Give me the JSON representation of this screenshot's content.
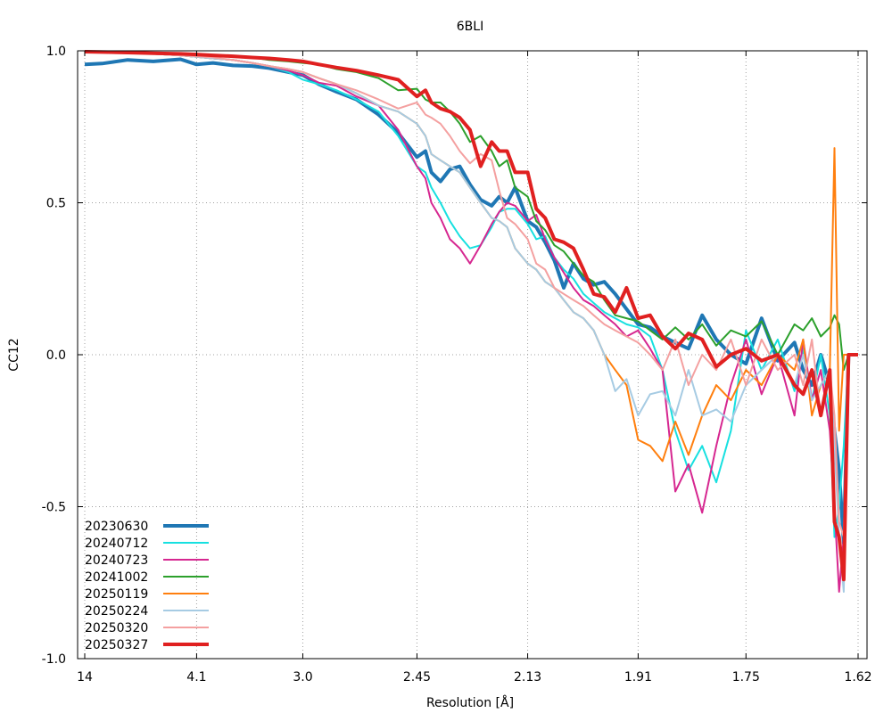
{
  "chart_data": {
    "type": "line",
    "title": "6BLI",
    "xlabel": "Resolution [Å]",
    "ylabel": "CC12",
    "x_axis_scale": "1/d^2",
    "xlim": [
      14,
      1.62
    ],
    "ylim": [
      -1.0,
      1.0
    ],
    "x_ticks": [
      {
        "value": 14,
        "label": "14"
      },
      {
        "value": 4.1,
        "label": "4.1"
      },
      {
        "value": 3.0,
        "label": "3.0"
      },
      {
        "value": 2.45,
        "label": "2.45"
      },
      {
        "value": 2.13,
        "label": "2.13"
      },
      {
        "value": 1.91,
        "label": "1.91"
      },
      {
        "value": 1.75,
        "label": "1.75"
      },
      {
        "value": 1.62,
        "label": "1.62"
      }
    ],
    "y_ticks": [
      {
        "value": 1.0,
        "label": "1.0"
      },
      {
        "value": 0.5,
        "label": "0.5"
      },
      {
        "value": 0.0,
        "label": "0.0"
      },
      {
        "value": -0.5,
        "label": "-0.5"
      },
      {
        "value": -1.0,
        "label": "-1.0"
      }
    ],
    "grid": true,
    "legend_position": "bottom-left",
    "series": [
      {
        "name": "20230630",
        "color": "#1f77b4",
        "width": 4,
        "resolution": [
          14,
          8.6,
          6.2,
          5.1,
          4.4,
          4.1,
          3.85,
          3.6,
          3.4,
          3.25,
          3.1,
          3.0,
          2.9,
          2.8,
          2.7,
          2.6,
          2.52,
          2.45,
          2.42,
          2.4,
          2.37,
          2.34,
          2.31,
          2.28,
          2.25,
          2.22,
          2.2,
          2.18,
          2.16,
          2.13,
          2.11,
          2.09,
          2.07,
          2.05,
          2.03,
          2.01,
          1.99,
          1.97,
          1.95,
          1.93,
          1.91,
          1.89,
          1.87,
          1.85,
          1.83,
          1.81,
          1.79,
          1.77,
          1.75,
          1.73,
          1.71,
          1.69,
          1.68,
          1.67,
          1.66,
          1.65,
          1.645,
          1.64,
          1.635,
          1.63,
          1.62
        ],
        "cc": [
          0.955,
          0.958,
          0.97,
          0.965,
          0.972,
          0.955,
          0.96,
          0.952,
          0.95,
          0.943,
          0.93,
          0.92,
          0.89,
          0.865,
          0.84,
          0.79,
          0.73,
          0.65,
          0.67,
          0.6,
          0.57,
          0.61,
          0.62,
          0.56,
          0.51,
          0.49,
          0.52,
          0.5,
          0.55,
          0.44,
          0.42,
          0.37,
          0.31,
          0.22,
          0.3,
          0.25,
          0.23,
          0.24,
          0.2,
          0.15,
          0.1,
          0.09,
          0.06,
          0.04,
          0.02,
          0.13,
          0.05,
          0.0,
          -0.03,
          0.12,
          -0.02,
          0.04,
          -0.05,
          -0.1,
          0.0,
          -0.1,
          -0.25,
          -0.38,
          -0.62,
          0.0,
          0.0
        ]
      },
      {
        "name": "20240712",
        "color": "#17e0e0",
        "width": 2,
        "resolution": [
          14,
          8.6,
          6.2,
          5.1,
          4.4,
          4.1,
          3.85,
          3.6,
          3.4,
          3.25,
          3.1,
          3.0,
          2.9,
          2.8,
          2.7,
          2.6,
          2.52,
          2.45,
          2.42,
          2.4,
          2.37,
          2.34,
          2.31,
          2.28,
          2.25,
          2.22,
          2.2,
          2.18,
          2.16,
          2.13,
          2.11,
          2.09,
          2.07,
          2.05,
          2.03,
          2.01,
          1.99,
          1.97,
          1.95,
          1.93,
          1.91,
          1.89,
          1.87,
          1.85,
          1.83,
          1.81,
          1.79,
          1.77,
          1.75,
          1.73,
          1.71,
          1.69,
          1.68,
          1.67,
          1.66,
          1.65,
          1.645,
          1.64,
          1.635,
          1.63,
          1.62
        ],
        "cc": [
          0.997,
          0.996,
          0.993,
          0.99,
          0.985,
          0.98,
          0.975,
          0.97,
          0.96,
          0.95,
          0.93,
          0.905,
          0.89,
          0.87,
          0.84,
          0.8,
          0.72,
          0.62,
          0.6,
          0.55,
          0.5,
          0.44,
          0.39,
          0.35,
          0.36,
          0.42,
          0.47,
          0.48,
          0.48,
          0.43,
          0.38,
          0.39,
          0.32,
          0.28,
          0.25,
          0.2,
          0.17,
          0.14,
          0.12,
          0.1,
          0.09,
          0.06,
          -0.05,
          -0.25,
          -0.38,
          -0.3,
          -0.42,
          -0.25,
          0.08,
          -0.05,
          0.05,
          -0.12,
          0.02,
          -0.15,
          0.0,
          -0.2,
          -0.6,
          -0.5,
          -0.3,
          0.0,
          0.0
        ]
      },
      {
        "name": "20240723",
        "color": "#d62790",
        "width": 2,
        "resolution": [
          14,
          8.6,
          6.2,
          5.1,
          4.4,
          4.1,
          3.85,
          3.6,
          3.4,
          3.25,
          3.1,
          3.0,
          2.9,
          2.8,
          2.7,
          2.6,
          2.52,
          2.45,
          2.42,
          2.4,
          2.37,
          2.34,
          2.31,
          2.28,
          2.25,
          2.22,
          2.2,
          2.18,
          2.16,
          2.13,
          2.11,
          2.09,
          2.07,
          2.05,
          2.03,
          2.01,
          1.99,
          1.97,
          1.95,
          1.93,
          1.91,
          1.89,
          1.87,
          1.85,
          1.83,
          1.81,
          1.79,
          1.77,
          1.75,
          1.73,
          1.71,
          1.69,
          1.68,
          1.67,
          1.66,
          1.65,
          1.645,
          1.64,
          1.635,
          1.63,
          1.62
        ],
        "cc": [
          0.997,
          0.996,
          0.993,
          0.99,
          0.985,
          0.98,
          0.975,
          0.97,
          0.96,
          0.95,
          0.935,
          0.92,
          0.895,
          0.885,
          0.85,
          0.82,
          0.74,
          0.62,
          0.58,
          0.5,
          0.45,
          0.38,
          0.35,
          0.3,
          0.36,
          0.43,
          0.47,
          0.5,
          0.49,
          0.44,
          0.46,
          0.38,
          0.32,
          0.27,
          0.22,
          0.18,
          0.16,
          0.13,
          0.1,
          0.06,
          0.08,
          0.02,
          -0.05,
          -0.45,
          -0.36,
          -0.52,
          -0.3,
          -0.1,
          0.05,
          -0.13,
          0.0,
          -0.2,
          0.05,
          -0.15,
          -0.05,
          -0.25,
          -0.5,
          -0.78,
          -0.6,
          0.0,
          0.0
        ]
      },
      {
        "name": "20241002",
        "color": "#2ca02c",
        "width": 2,
        "resolution": [
          14,
          8.6,
          6.2,
          5.1,
          4.4,
          4.1,
          3.85,
          3.6,
          3.4,
          3.25,
          3.1,
          3.0,
          2.9,
          2.8,
          2.7,
          2.6,
          2.52,
          2.45,
          2.42,
          2.4,
          2.37,
          2.34,
          2.31,
          2.28,
          2.25,
          2.22,
          2.2,
          2.18,
          2.16,
          2.13,
          2.11,
          2.09,
          2.07,
          2.05,
          2.03,
          2.01,
          1.99,
          1.97,
          1.95,
          1.93,
          1.91,
          1.89,
          1.87,
          1.85,
          1.83,
          1.81,
          1.79,
          1.77,
          1.75,
          1.73,
          1.71,
          1.69,
          1.68,
          1.67,
          1.66,
          1.65,
          1.645,
          1.64,
          1.635,
          1.63,
          1.62
        ],
        "cc": [
          0.997,
          0.996,
          0.995,
          0.993,
          0.99,
          0.99,
          0.985,
          0.982,
          0.978,
          0.97,
          0.965,
          0.96,
          0.955,
          0.94,
          0.93,
          0.91,
          0.87,
          0.875,
          0.84,
          0.83,
          0.83,
          0.8,
          0.76,
          0.7,
          0.72,
          0.67,
          0.62,
          0.64,
          0.55,
          0.52,
          0.44,
          0.41,
          0.36,
          0.34,
          0.3,
          0.26,
          0.24,
          0.18,
          0.13,
          0.12,
          0.11,
          0.08,
          0.05,
          0.09,
          0.05,
          0.1,
          0.03,
          0.08,
          0.06,
          0.11,
          0.0,
          0.1,
          0.08,
          0.12,
          0.06,
          0.09,
          0.13,
          0.1,
          -0.05,
          0.0,
          0.0
        ]
      },
      {
        "name": "20250119",
        "color": "#ff7f0e",
        "width": 2,
        "resolution": [
          14,
          8.6,
          6.2,
          5.1,
          4.4,
          4.1,
          3.85,
          3.6,
          3.4,
          3.25,
          3.1,
          3.0,
          2.9,
          2.8,
          2.7,
          2.6,
          2.52,
          2.45,
          2.42,
          2.4,
          2.37,
          2.34,
          2.31,
          2.28,
          2.25,
          2.22,
          2.2,
          2.18,
          2.16,
          2.13,
          2.11,
          2.09,
          2.07,
          2.05,
          2.03,
          2.01,
          1.99,
          1.97,
          1.95,
          1.93,
          1.91,
          1.89,
          1.87,
          1.85,
          1.83,
          1.81,
          1.79,
          1.77,
          1.75,
          1.73,
          1.71,
          1.69,
          1.68,
          1.67,
          1.66,
          1.65,
          1.645,
          1.64,
          1.635,
          1.63,
          1.62
        ],
        "cc": [
          0.997,
          0.996,
          0.993,
          0.99,
          0.985,
          0.98,
          0.975,
          0.97,
          0.96,
          0.95,
          0.94,
          0.93,
          0.91,
          0.89,
          0.86,
          0.82,
          0.8,
          0.76,
          0.72,
          0.66,
          0.64,
          0.62,
          0.6,
          0.55,
          0.5,
          0.45,
          0.44,
          0.42,
          0.35,
          0.3,
          0.28,
          0.24,
          0.22,
          0.18,
          0.14,
          0.12,
          0.08,
          0.0,
          -0.05,
          -0.1,
          -0.28,
          -0.3,
          -0.35,
          -0.22,
          -0.33,
          -0.2,
          -0.1,
          -0.15,
          -0.05,
          -0.1,
          0.0,
          -0.05,
          0.05,
          -0.2,
          -0.1,
          -0.05,
          0.68,
          -0.25,
          0.0,
          0.0,
          0.0
        ]
      },
      {
        "name": "20250224",
        "color": "#a6cbe3",
        "width": 2,
        "resolution": [
          14,
          8.6,
          6.2,
          5.1,
          4.4,
          4.1,
          3.85,
          3.6,
          3.4,
          3.25,
          3.1,
          3.0,
          2.9,
          2.8,
          2.7,
          2.6,
          2.52,
          2.45,
          2.42,
          2.4,
          2.37,
          2.34,
          2.31,
          2.28,
          2.25,
          2.22,
          2.2,
          2.18,
          2.16,
          2.13,
          2.11,
          2.09,
          2.07,
          2.05,
          2.03,
          2.01,
          1.99,
          1.97,
          1.95,
          1.93,
          1.91,
          1.89,
          1.87,
          1.85,
          1.83,
          1.81,
          1.79,
          1.77,
          1.75,
          1.73,
          1.71,
          1.69,
          1.68,
          1.67,
          1.66,
          1.65,
          1.645,
          1.64,
          1.635,
          1.63,
          1.62
        ],
        "cc": [
          0.997,
          0.996,
          0.993,
          0.99,
          0.985,
          0.98,
          0.975,
          0.97,
          0.96,
          0.95,
          0.94,
          0.93,
          0.91,
          0.89,
          0.86,
          0.82,
          0.8,
          0.76,
          0.72,
          0.66,
          0.64,
          0.62,
          0.6,
          0.55,
          0.5,
          0.45,
          0.44,
          0.42,
          0.35,
          0.3,
          0.28,
          0.24,
          0.22,
          0.18,
          0.14,
          0.12,
          0.08,
          0.0,
          -0.12,
          -0.08,
          -0.2,
          -0.13,
          -0.12,
          -0.2,
          -0.05,
          -0.2,
          -0.18,
          -0.22,
          -0.1,
          -0.05,
          0.0,
          -0.1,
          0.0,
          -0.15,
          -0.1,
          -0.05,
          -0.3,
          -0.6,
          -0.78,
          0.0,
          0.0
        ]
      },
      {
        "name": "20250320",
        "color": "#f4a0a0",
        "width": 2,
        "resolution": [
          14,
          8.6,
          6.2,
          5.1,
          4.4,
          4.1,
          3.85,
          3.6,
          3.4,
          3.25,
          3.1,
          3.0,
          2.9,
          2.8,
          2.7,
          2.6,
          2.52,
          2.45,
          2.42,
          2.4,
          2.37,
          2.34,
          2.31,
          2.28,
          2.25,
          2.22,
          2.2,
          2.18,
          2.16,
          2.13,
          2.11,
          2.09,
          2.07,
          2.05,
          2.03,
          2.01,
          1.99,
          1.97,
          1.95,
          1.93,
          1.91,
          1.89,
          1.87,
          1.85,
          1.83,
          1.81,
          1.79,
          1.77,
          1.75,
          1.73,
          1.71,
          1.69,
          1.68,
          1.67,
          1.66,
          1.65,
          1.645,
          1.64,
          1.635,
          1.63,
          1.62
        ],
        "cc": [
          0.997,
          0.996,
          0.993,
          0.99,
          0.985,
          0.982,
          0.978,
          0.97,
          0.96,
          0.95,
          0.94,
          0.93,
          0.91,
          0.89,
          0.87,
          0.84,
          0.81,
          0.83,
          0.79,
          0.78,
          0.76,
          0.72,
          0.67,
          0.63,
          0.66,
          0.64,
          0.54,
          0.45,
          0.43,
          0.38,
          0.3,
          0.28,
          0.22,
          0.2,
          0.18,
          0.16,
          0.13,
          0.1,
          0.08,
          0.06,
          0.04,
          0.0,
          -0.05,
          0.05,
          -0.1,
          0.0,
          -0.05,
          0.05,
          -0.1,
          0.05,
          -0.05,
          0.0,
          -0.1,
          0.05,
          -0.2,
          -0.05,
          -0.2,
          -0.55,
          -0.6,
          0.0,
          0.0
        ]
      },
      {
        "name": "20250327",
        "color": "#e02020",
        "width": 4,
        "resolution": [
          14,
          8.6,
          6.2,
          5.1,
          4.4,
          4.1,
          3.85,
          3.6,
          3.4,
          3.25,
          3.1,
          3.0,
          2.9,
          2.8,
          2.7,
          2.6,
          2.52,
          2.45,
          2.42,
          2.4,
          2.37,
          2.34,
          2.31,
          2.28,
          2.25,
          2.22,
          2.2,
          2.18,
          2.16,
          2.13,
          2.11,
          2.09,
          2.07,
          2.05,
          2.03,
          2.01,
          1.99,
          1.97,
          1.95,
          1.93,
          1.91,
          1.89,
          1.87,
          1.85,
          1.83,
          1.81,
          1.79,
          1.77,
          1.75,
          1.73,
          1.71,
          1.69,
          1.68,
          1.67,
          1.66,
          1.65,
          1.645,
          1.64,
          1.635,
          1.63,
          1.62
        ],
        "cc": [
          0.997,
          0.996,
          0.994,
          0.992,
          0.99,
          0.988,
          0.985,
          0.982,
          0.978,
          0.975,
          0.97,
          0.965,
          0.955,
          0.945,
          0.935,
          0.92,
          0.905,
          0.85,
          0.87,
          0.83,
          0.81,
          0.8,
          0.78,
          0.74,
          0.62,
          0.7,
          0.67,
          0.67,
          0.6,
          0.6,
          0.48,
          0.45,
          0.38,
          0.37,
          0.35,
          0.28,
          0.2,
          0.19,
          0.14,
          0.22,
          0.12,
          0.13,
          0.06,
          0.02,
          0.07,
          0.05,
          -0.04,
          0.0,
          0.02,
          -0.02,
          0.0,
          -0.1,
          -0.13,
          -0.05,
          -0.2,
          -0.05,
          -0.55,
          -0.6,
          -0.74,
          0.0,
          0.0
        ]
      }
    ]
  }
}
